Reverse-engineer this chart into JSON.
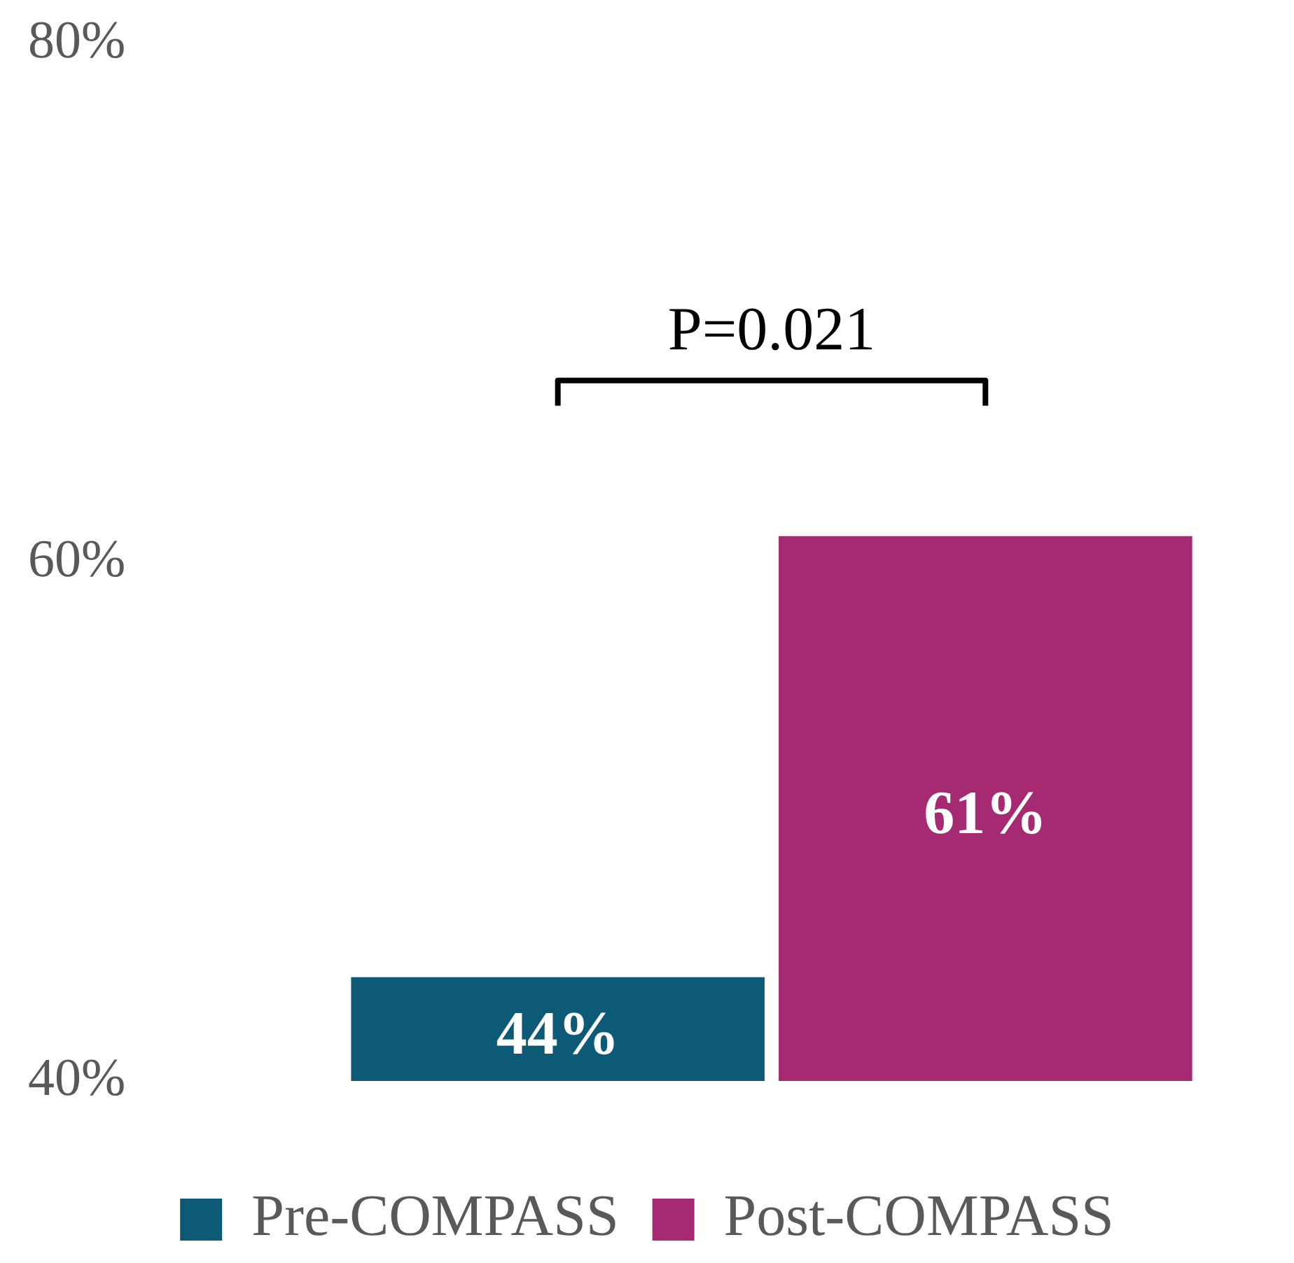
{
  "chart_data": {
    "type": "bar",
    "categories": [
      null
    ],
    "series": [
      {
        "name": "Pre-COMPASS",
        "color": "#0d5a76",
        "values": [
          44
        ],
        "value_labels": [
          "44%"
        ]
      },
      {
        "name": "Post-COMPASS",
        "color": "#a62a72",
        "values": [
          61
        ],
        "value_labels": [
          "61%"
        ]
      }
    ],
    "ylim": [
      40,
      80
    ],
    "yticks": [
      {
        "value": 40,
        "label": "40%"
      },
      {
        "value": 60,
        "label": "60%"
      },
      {
        "value": 80,
        "label": "80%"
      }
    ],
    "grid": false,
    "legend": "bottom",
    "annotations": [
      "P=0.021"
    ]
  }
}
